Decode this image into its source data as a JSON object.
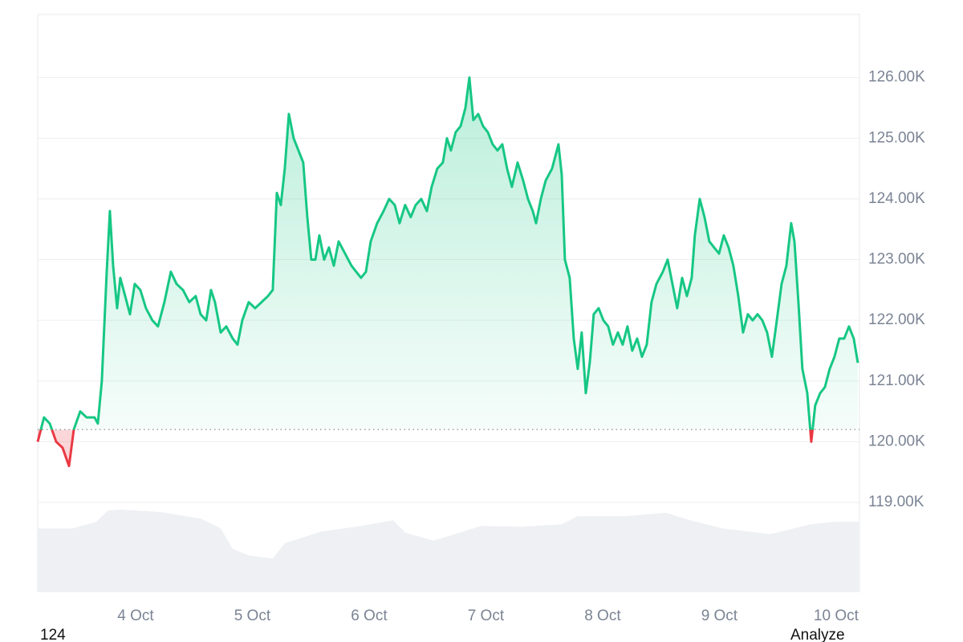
{
  "chart_data": {
    "type": "line",
    "x": [
      3.162,
      3.216,
      3.265,
      3.32,
      3.375,
      3.43,
      3.471,
      3.526,
      3.581,
      3.649,
      3.677,
      3.711,
      3.753,
      3.78,
      3.808,
      3.842,
      3.869,
      3.911,
      3.952,
      3.993,
      4.041,
      4.089,
      4.144,
      4.192,
      4.247,
      4.302,
      4.351,
      4.406,
      4.46,
      4.515,
      4.557,
      4.605,
      4.646,
      4.68,
      4.729,
      4.777,
      4.832,
      4.873,
      4.914,
      4.969,
      5.024,
      5.079,
      5.134,
      5.175,
      5.21,
      5.244,
      5.278,
      5.313,
      5.354,
      5.395,
      5.436,
      5.471,
      5.505,
      5.54,
      5.574,
      5.615,
      5.656,
      5.698,
      5.739,
      5.794,
      5.849,
      5.89,
      5.931,
      5.973,
      6.014,
      6.069,
      6.124,
      6.172,
      6.22,
      6.261,
      6.309,
      6.357,
      6.399,
      6.447,
      6.495,
      6.536,
      6.584,
      6.632,
      6.667,
      6.701,
      6.742,
      6.784,
      6.825,
      6.859,
      6.893,
      6.935,
      6.976,
      7.017,
      7.058,
      7.1,
      7.141,
      7.182,
      7.223,
      7.272,
      7.32,
      7.361,
      7.402,
      7.43,
      7.471,
      7.512,
      7.567,
      7.622,
      7.65,
      7.677,
      7.718,
      7.753,
      7.787,
      7.821,
      7.856,
      7.89,
      7.924,
      7.966,
      8.007,
      8.048,
      8.089,
      8.131,
      8.172,
      8.213,
      8.254,
      8.296,
      8.337,
      8.378,
      8.419,
      8.461,
      8.516,
      8.557,
      8.598,
      8.639,
      8.681,
      8.722,
      8.763,
      8.79,
      8.832,
      8.873,
      8.914,
      8.955,
      8.997,
      9.038,
      9.079,
      9.12,
      9.162,
      9.203,
      9.244,
      9.285,
      9.327,
      9.368,
      9.409,
      9.45,
      9.492,
      9.533,
      9.574,
      9.615,
      9.643,
      9.677,
      9.711,
      9.753,
      9.787,
      9.821,
      9.863,
      9.904,
      9.945,
      9.986,
      10.027,
      10.069,
      10.11,
      10.151,
      10.186
    ],
    "series": [
      {
        "color": "#16c784",
        "negative_color": "#ea3943",
        "values": [
          120000,
          120400,
          120300,
          120000,
          119900,
          119600,
          120200,
          120500,
          120400,
          120400,
          120300,
          121000,
          122800,
          123800,
          122900,
          122200,
          122700,
          122400,
          122100,
          122600,
          122500,
          122200,
          122000,
          121900,
          122300,
          122800,
          122600,
          122500,
          122300,
          122400,
          122100,
          122000,
          122500,
          122300,
          121800,
          121900,
          121700,
          121600,
          122000,
          122300,
          122200,
          122300,
          122400,
          122500,
          124100,
          123900,
          124500,
          125400,
          125000,
          124800,
          124600,
          123700,
          123000,
          123000,
          123400,
          123000,
          123200,
          122900,
          123300,
          123100,
          122900,
          122800,
          122700,
          122800,
          123300,
          123600,
          123800,
          124000,
          123900,
          123600,
          123900,
          123700,
          123900,
          124000,
          123800,
          124200,
          124500,
          124600,
          125000,
          124800,
          125100,
          125200,
          125500,
          126000,
          125300,
          125400,
          125200,
          125100,
          124900,
          124800,
          124900,
          124500,
          124200,
          124600,
          124300,
          124000,
          123800,
          123600,
          124000,
          124300,
          124500,
          124900,
          124400,
          123000,
          122700,
          121700,
          121200,
          121800,
          120800,
          121300,
          122100,
          122200,
          122000,
          121900,
          121600,
          121800,
          121600,
          121900,
          121500,
          121700,
          121400,
          121600,
          122300,
          122600,
          122800,
          123000,
          122600,
          122200,
          122700,
          122400,
          122700,
          123400,
          124000,
          123700,
          123300,
          123200,
          123100,
          123400,
          123200,
          122900,
          122400,
          121800,
          122100,
          122000,
          122100,
          122000,
          121800,
          121400,
          122000,
          122600,
          122900,
          123600,
          123300,
          122300,
          121200,
          120800,
          120000,
          120600,
          120800,
          120900,
          121200,
          121400,
          121700,
          121700,
          121900,
          121700,
          121300
        ]
      }
    ],
    "baseline": 120200,
    "volume": {
      "color": "#eef0f3",
      "x": [
        3.162,
        3.457,
        3.663,
        3.766,
        3.869,
        4.213,
        4.557,
        4.729,
        4.832,
        4.969,
        5.175,
        5.278,
        5.588,
        5.931,
        6.206,
        6.309,
        6.55,
        6.962,
        7.306,
        7.65,
        7.787,
        8.199,
        8.543,
        8.749,
        9.024,
        9.437,
        9.78,
        9.986,
        10.193
      ],
      "values": [
        78,
        78,
        86,
        100,
        101,
        98,
        90,
        78,
        53,
        45,
        41,
        60,
        74,
        81,
        88,
        73,
        63,
        81,
        80,
        83,
        93,
        93,
        97,
        88,
        78,
        71,
        83,
        86,
        86
      ],
      "lim": [
        0,
        120
      ]
    },
    "xlim": [
      3.162,
      10.2
    ],
    "xticks": [
      {
        "value": 4,
        "label": "4 Oct"
      },
      {
        "value": 5,
        "label": "5 Oct"
      },
      {
        "value": 6,
        "label": "6 Oct"
      },
      {
        "value": 7,
        "label": "7 Oct"
      },
      {
        "value": 8,
        "label": "8 Oct"
      },
      {
        "value": 9,
        "label": "9 Oct"
      },
      {
        "value": 10,
        "label": "10 Oct"
      }
    ],
    "ylim": [
      117520,
      127040
    ],
    "yticks": [
      {
        "value": 119000,
        "label": "119.00K"
      },
      {
        "value": 120000,
        "label": "120.00K"
      },
      {
        "value": 121000,
        "label": "121.00K"
      },
      {
        "value": 122000,
        "label": "122.00K"
      },
      {
        "value": 123000,
        "label": "123.00K"
      },
      {
        "value": 124000,
        "label": "124.00K"
      },
      {
        "value": 125000,
        "label": "125.00K"
      },
      {
        "value": 126000,
        "label": "126.00K"
      }
    ],
    "grid": true
  },
  "footer": {
    "left_text": "124",
    "right_text": "Analyze"
  }
}
